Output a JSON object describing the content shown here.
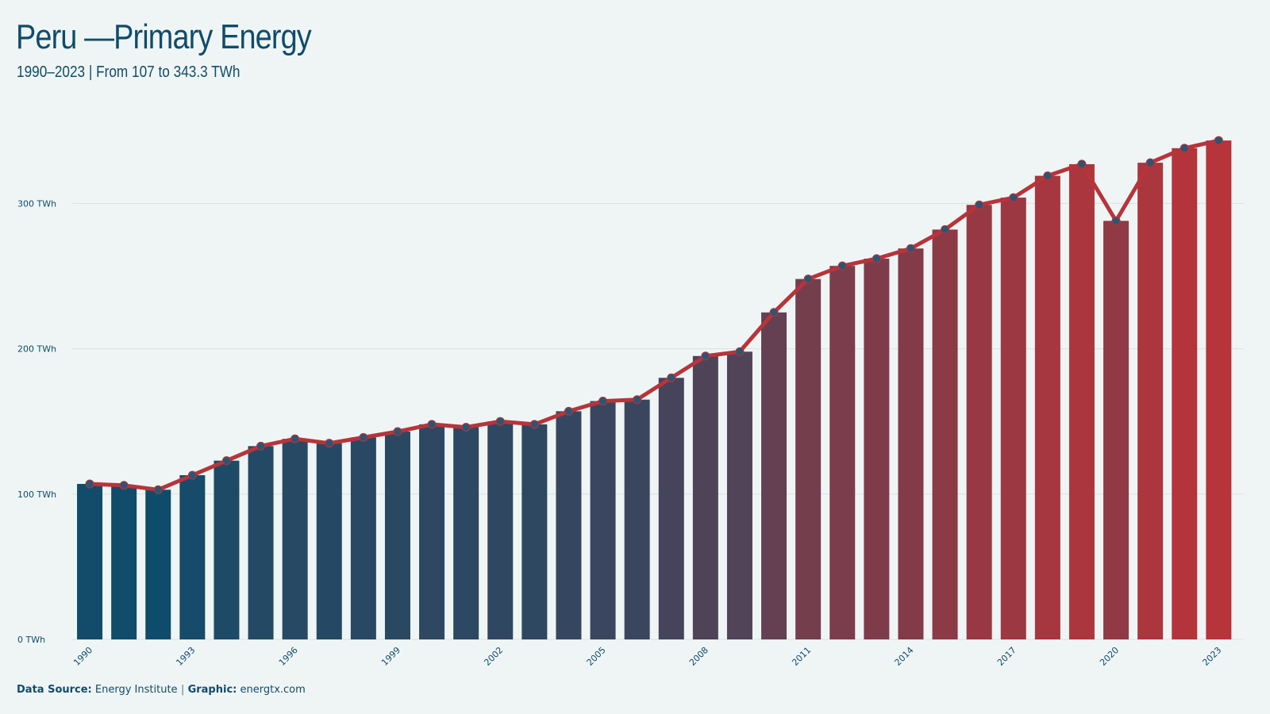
{
  "colors": {
    "background": "#eff5f5",
    "text": "#0f4c6b",
    "bar_start": "#0f4c6b",
    "bar_end": "#b7343a",
    "line": "#b7343a",
    "point_fill": "#2d5573",
    "grid": "#d9e2e4"
  },
  "header": {
    "title": "Peru —Primary Energy",
    "subtitle": "1990–2023 | From 107 to 343.3 TWh"
  },
  "footer": {
    "source_label": "Data Source:",
    "source_value": "Energy Institute",
    "separator": "|",
    "graphic_label": "Graphic:",
    "graphic_value": "energtx.com"
  },
  "chart_data": {
    "type": "bar",
    "title": "Peru —Primary Energy",
    "subtitle": "1990–2023 | From 107 to 343.3 TWh",
    "xlabel": "",
    "ylabel": "",
    "unit": "TWh",
    "ylim": [
      0,
      350
    ],
    "grid": true,
    "yticks": [
      {
        "value": 0,
        "label": "0 TWh"
      },
      {
        "value": 100,
        "label": "100 TWh"
      },
      {
        "value": 200,
        "label": "200 TWh"
      },
      {
        "value": 300,
        "label": "300 TWh"
      }
    ],
    "xtick_labels": [
      "1990",
      "1993",
      "1996",
      "1999",
      "2002",
      "2005",
      "2008",
      "2011",
      "2014",
      "2017",
      "2020",
      "2023"
    ],
    "categories": [
      "1990",
      "1991",
      "1992",
      "1993",
      "1994",
      "1995",
      "1996",
      "1997",
      "1998",
      "1999",
      "2000",
      "2001",
      "2002",
      "2003",
      "2004",
      "2005",
      "2006",
      "2007",
      "2008",
      "2009",
      "2010",
      "2011",
      "2012",
      "2013",
      "2014",
      "2015",
      "2016",
      "2017",
      "2018",
      "2019",
      "2020",
      "2021",
      "2022",
      "2023"
    ],
    "values": [
      107,
      106,
      103,
      113,
      123,
      133,
      138,
      135,
      139,
      143,
      148,
      146,
      150,
      148,
      157,
      164,
      165,
      180,
      195,
      198,
      225,
      248,
      257,
      262,
      269,
      282,
      299,
      304,
      319,
      327,
      288,
      328,
      338,
      343.3
    ],
    "overlay": "line with point markers on the same values"
  }
}
